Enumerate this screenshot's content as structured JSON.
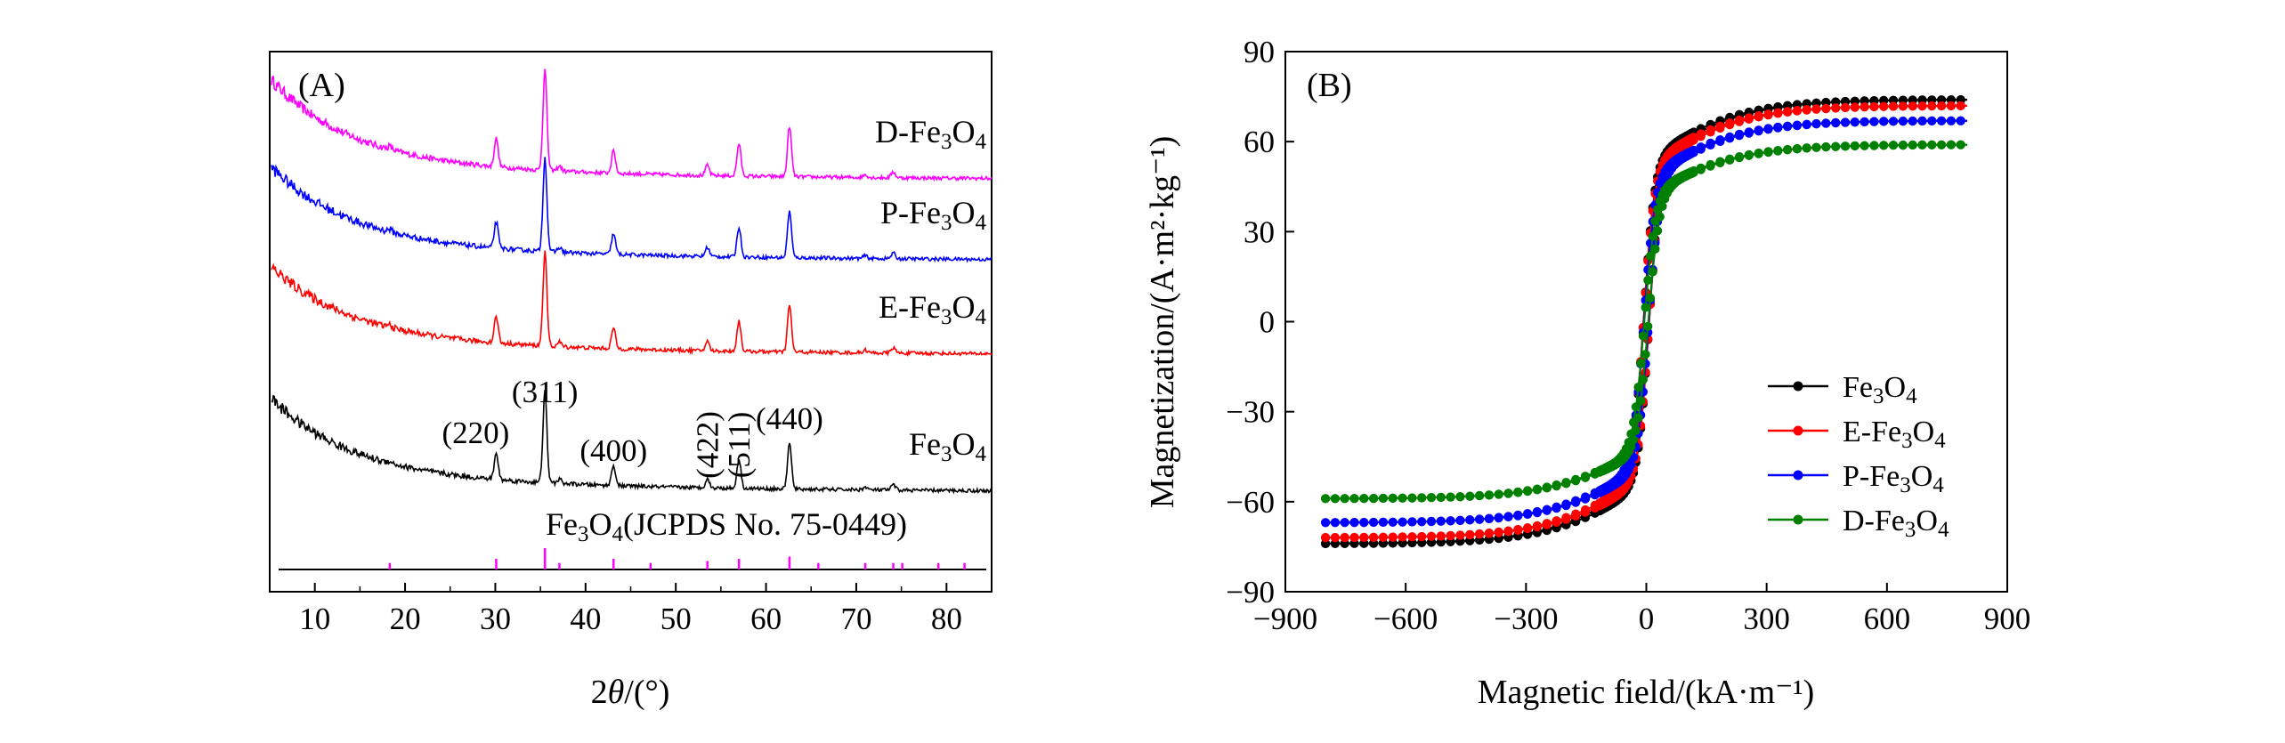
{
  "chart_data": [
    {
      "type": "line",
      "panel_label": "(A)",
      "xlabel": {
        "prefix": "2",
        "var": "θ",
        "suffix": "/(°)"
      },
      "ylabel": "",
      "xlim": [
        5,
        85
      ],
      "xticks": [
        10,
        20,
        30,
        40,
        50,
        60,
        70,
        80
      ],
      "series": [
        {
          "name": "D-Fe3O4",
          "label": {
            "pre": "D-Fe",
            "s1": "3",
            "mid": "O",
            "s2": "4"
          },
          "color": "#ff00ff",
          "offset": 3
        },
        {
          "name": "P-Fe3O4",
          "label": {
            "pre": "P-Fe",
            "s1": "3",
            "mid": "O",
            "s2": "4"
          },
          "color": "#0000ff",
          "offset": 2
        },
        {
          "name": "E-Fe3O4",
          "label": {
            "pre": "E-Fe",
            "s1": "3",
            "mid": "O",
            "s2": "4"
          },
          "color": "#ff0000",
          "offset": 1
        },
        {
          "name": "Fe3O4",
          "label": {
            "pre": "Fe",
            "s1": "3",
            "mid": "O",
            "s2": "4"
          },
          "color": "#000000",
          "offset": 0
        }
      ],
      "peaks": [
        {
          "two_theta": 18.3,
          "height": 0.03
        },
        {
          "two_theta": 30.1,
          "height": 0.28
        },
        {
          "two_theta": 35.5,
          "height": 1.0
        },
        {
          "two_theta": 37.1,
          "height": 0.05
        },
        {
          "two_theta": 43.1,
          "height": 0.22
        },
        {
          "two_theta": 53.5,
          "height": 0.1
        },
        {
          "two_theta": 57.0,
          "height": 0.32
        },
        {
          "two_theta": 62.6,
          "height": 0.5
        },
        {
          "two_theta": 71.0,
          "height": 0.03
        },
        {
          "two_theta": 74.1,
          "height": 0.06
        }
      ],
      "peak_labels": [
        {
          "text": "(220)",
          "two_theta": 30.1,
          "rotated": false
        },
        {
          "text": "(311)",
          "two_theta": 35.5,
          "rotated": false
        },
        {
          "text": "(400)",
          "two_theta": 43.1,
          "rotated": false
        },
        {
          "text": "(422)",
          "two_theta": 53.5,
          "rotated": true
        },
        {
          "text": "(511)",
          "two_theta": 57.0,
          "rotated": true
        },
        {
          "text": "(440)",
          "two_theta": 62.6,
          "rotated": false
        }
      ],
      "reference": {
        "label": {
          "pre": "Fe",
          "s1": "3",
          "mid": "O",
          "s2": "4",
          "post": "(JCPDS No. 75-0449)"
        },
        "color": "#ff00ff",
        "lines": [
          {
            "two_theta": 18.3,
            "intensity": 0.3
          },
          {
            "two_theta": 30.1,
            "intensity": 0.5
          },
          {
            "two_theta": 35.5,
            "intensity": 1.0
          },
          {
            "two_theta": 37.1,
            "intensity": 0.3
          },
          {
            "two_theta": 43.1,
            "intensity": 0.5
          },
          {
            "two_theta": 47.2,
            "intensity": 0.3
          },
          {
            "two_theta": 53.5,
            "intensity": 0.4
          },
          {
            "two_theta": 57.0,
            "intensity": 0.5
          },
          {
            "two_theta": 62.6,
            "intensity": 0.6
          },
          {
            "two_theta": 65.8,
            "intensity": 0.3
          },
          {
            "two_theta": 71.0,
            "intensity": 0.3
          },
          {
            "two_theta": 74.1,
            "intensity": 0.3
          },
          {
            "two_theta": 75.1,
            "intensity": 0.3
          },
          {
            "two_theta": 79.1,
            "intensity": 0.3
          },
          {
            "two_theta": 82.0,
            "intensity": 0.3
          }
        ]
      }
    },
    {
      "type": "line",
      "panel_label": "(B)",
      "xlabel": "Magnetic field/(kA·m⁻¹)",
      "ylabel": "Magnetization/(A·m²·kg⁻¹)",
      "xlim": [
        -900,
        900
      ],
      "ylim": [
        -90,
        90
      ],
      "xticks": [
        -900,
        -600,
        -300,
        0,
        300,
        600,
        900
      ],
      "xtick_labels": [
        "−900",
        "−600",
        "−300",
        "0",
        "300",
        "600",
        "900"
      ],
      "yticks": [
        -90,
        -60,
        -30,
        0,
        30,
        60,
        90
      ],
      "ytick_labels": [
        "−90",
        "−60",
        "−30",
        "0",
        "30",
        "60",
        "90"
      ],
      "field_range": [
        -800,
        800
      ],
      "legend_position": "bottom-right",
      "series": [
        {
          "name": "Fe3O4",
          "label": {
            "pre": "Fe",
            "s1": "3",
            "mid": "O",
            "s2": "4"
          },
          "color": "#000000",
          "ms": 74,
          "coercivity": 7
        },
        {
          "name": "E-Fe3O4",
          "label": {
            "pre": "E-Fe",
            "s1": "3",
            "mid": "O",
            "s2": "4"
          },
          "color": "#ff0000",
          "ms": 72,
          "coercivity": 7
        },
        {
          "name": "P-Fe3O4",
          "label": {
            "pre": "P-Fe",
            "s1": "3",
            "mid": "O",
            "s2": "4"
          },
          "color": "#0000ff",
          "ms": 67,
          "coercivity": 6
        },
        {
          "name": "D-Fe3O4",
          "label": {
            "pre": "D-Fe",
            "s1": "3",
            "mid": "O",
            "s2": "4"
          },
          "color": "#008000",
          "ms": 59,
          "coercivity": 5
        }
      ]
    }
  ]
}
